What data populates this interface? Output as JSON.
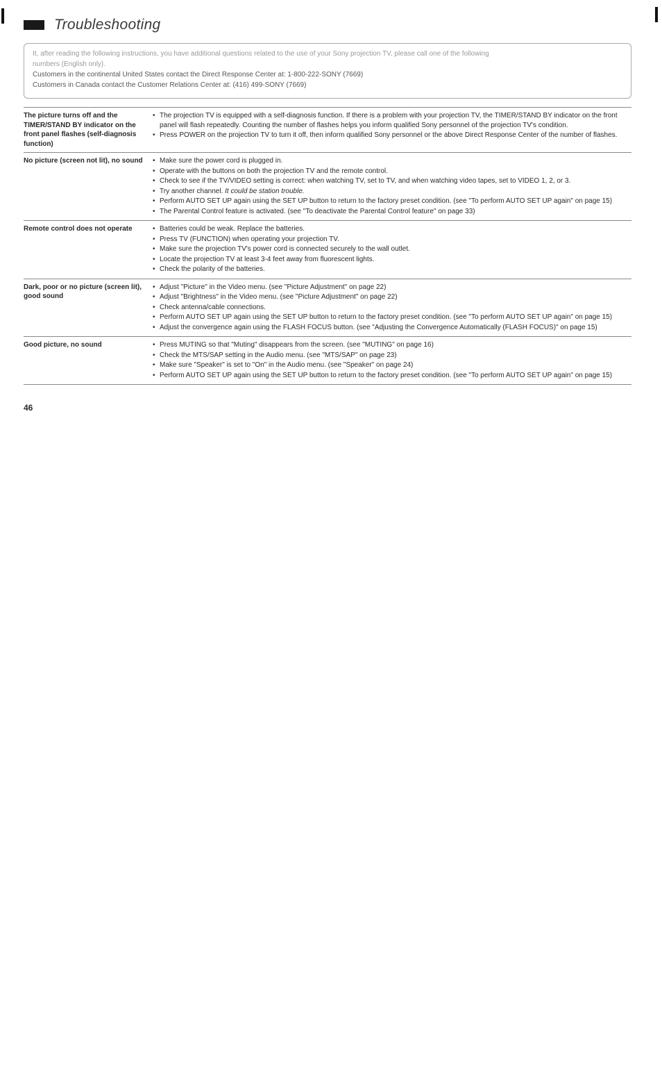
{
  "header": {
    "title": "Troubleshooting"
  },
  "info_box": {
    "line1": "It, after reading the following instructions, you have additional questions related to the use of your Sony projection TV, please call one of the following",
    "line2": "numbers (English only).",
    "line3": "Customers in the continental United States contact the Direct Response Center at: 1-800-222-SONY (7669)",
    "line4": "Customers in Canada contact the Customer Relations Center at: (416) 499-SONY (7669)"
  },
  "rows": [
    {
      "problem": "The picture turns off and the TIMER/STAND BY indicator on the front panel flashes (self-diagnosis function)",
      "solutions": [
        "The projection TV is equipped with a self-diagnosis function. If there is a problem with your projection TV, the TIMER/STAND BY indicator on the front panel will flash repeatedly. Counting the number of flashes helps you inform qualified Sony personnel of the projection TV's condition.",
        "Press POWER on the projection TV to turn it off, then inform qualified Sony personnel or the above Direct Response Center of the number of flashes."
      ]
    },
    {
      "problem": "No picture (screen not lit), no sound",
      "solutions": [
        "Make sure the power cord is plugged in.",
        "Operate with the buttons on both the projection TV and the remote control.",
        "Check to see if the TV/VIDEO setting is correct: when watching TV, set to TV, and when watching video tapes, set to VIDEO 1, 2, or 3.",
        "Try another channel. <span class=\"italic\">It could be station trouble.</span>",
        "Perform AUTO SET UP again using the SET UP button to return to the factory preset condition. (see \"To perform AUTO SET UP again\" on page 15)",
        "The Parental Control feature is activated. (see \"To deactivate the Parental Control feature\" on page 33)"
      ]
    },
    {
      "problem": "Remote control does not operate",
      "solutions": [
        "Batteries could be weak. Replace the batteries.",
        "Press TV (FUNCTION) when operating your projection TV.",
        "Make sure the projection TV's power cord is connected securely to the wall outlet.",
        "Locate the projection TV at least 3-4 feet away from fluorescent lights.",
        "Check the polarity of the batteries."
      ]
    },
    {
      "problem": "Dark, poor or no picture (screen lit), good sound",
      "solutions": [
        "Adjust \"Picture\" in the Video menu. (see \"Picture Adjustment\" on page 22)",
        "Adjust \"Brightness\" in the Video menu. (see \"Picture Adjustment\" on page 22)",
        "Check antenna/cable connections.",
        "Perform AUTO SET UP again using the SET UP button to return to the factory preset condition. (see \"To perform AUTO SET UP again\" on page 15)",
        "Adjust the convergence again using the FLASH FOCUS button. (see \"Adjusting the Convergence Automatically (FLASH FOCUS)\" on page 15)"
      ]
    },
    {
      "problem": "Good picture, no sound",
      "solutions": [
        "Press MUTING so that \"Muting\" disappears from the screen. (see \"MUTING\" on page 16)",
        "Check the MTS/SAP setting in the Audio menu. (see \"MTS/SAP\" on page 23)",
        "Make sure \"Speaker\" is set to \"On\" in the Audio menu. (see \"Speaker\" on page 24)",
        "Perform AUTO SET UP again using the SET UP button to return to the factory preset condition. (see \"To perform AUTO SET UP again\" on page 15)"
      ]
    }
  ],
  "page_number": "46"
}
